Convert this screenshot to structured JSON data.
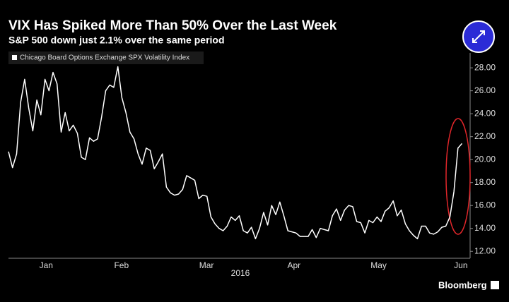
{
  "chart_data": {
    "type": "line",
    "title": "VIX Has Spiked More Than 50% Over the Last Week",
    "subtitle": "S&P 500 down just 2.1% over the same period",
    "xlabel": "2016",
    "source": "Bloomberg",
    "series": [
      {
        "name": "Chicago Board Options Exchange SPX Volatility Index",
        "color": "#ffffff",
        "values": [
          20.7,
          19.3,
          20.5,
          25.0,
          27.0,
          24.5,
          22.5,
          25.2,
          23.9,
          27.0,
          26.0,
          27.6,
          26.6,
          22.4,
          24.1,
          22.5,
          23.0,
          22.3,
          20.2,
          20.0,
          21.9,
          21.6,
          21.8,
          23.7,
          26.0,
          26.5,
          26.3,
          28.1,
          25.4,
          24.1,
          22.4,
          21.8,
          20.5,
          19.6,
          21.0,
          20.8,
          19.2,
          19.8,
          20.5,
          17.6,
          17.1,
          16.9,
          17.0,
          17.4,
          18.6,
          18.4,
          18.2,
          16.6,
          16.9,
          16.8,
          15.0,
          14.4,
          14.0,
          13.8,
          14.2,
          15.0,
          14.7,
          15.1,
          13.8,
          13.6,
          14.1,
          13.1,
          14.0,
          15.4,
          14.3,
          16.0,
          15.2,
          16.3,
          15.1,
          13.8,
          13.7,
          13.6,
          13.3,
          13.3,
          13.3,
          13.9,
          13.2,
          14.0,
          13.9,
          13.8,
          15.1,
          15.7,
          14.7,
          15.6,
          16.0,
          15.9,
          14.6,
          14.5,
          13.6,
          14.7,
          14.5,
          15.0,
          14.6,
          15.5,
          15.8,
          16.4,
          15.1,
          15.6,
          14.4,
          13.8,
          13.4,
          13.1,
          14.2,
          14.2,
          13.6,
          13.5,
          13.7,
          14.1,
          14.2,
          15.0,
          17.2,
          21.0,
          21.4
        ]
      }
    ],
    "xlim": [
      0,
      114
    ],
    "xticks": [
      {
        "value": 9.3,
        "label": "Jan"
      },
      {
        "value": 27.9,
        "label": "Feb"
      },
      {
        "value": 48.9,
        "label": "Mar"
      },
      {
        "value": 70.5,
        "label": "Apr"
      },
      {
        "value": 91.4,
        "label": "May"
      },
      {
        "value": 111.7,
        "label": "Jun"
      }
    ],
    "ylim": [
      11.4,
      29.3
    ],
    "yticks": [
      {
        "value": 12,
        "label": "12.00"
      },
      {
        "value": 14,
        "label": "14.00"
      },
      {
        "value": 16,
        "label": "16.00"
      },
      {
        "value": 18,
        "label": "18.00"
      },
      {
        "value": 20,
        "label": "20.00"
      },
      {
        "value": 22,
        "label": "22.00"
      },
      {
        "value": 24,
        "label": "24.00"
      },
      {
        "value": 26,
        "label": "26.00"
      },
      {
        "value": 28,
        "label": "28.00"
      }
    ],
    "grid": false
  }
}
